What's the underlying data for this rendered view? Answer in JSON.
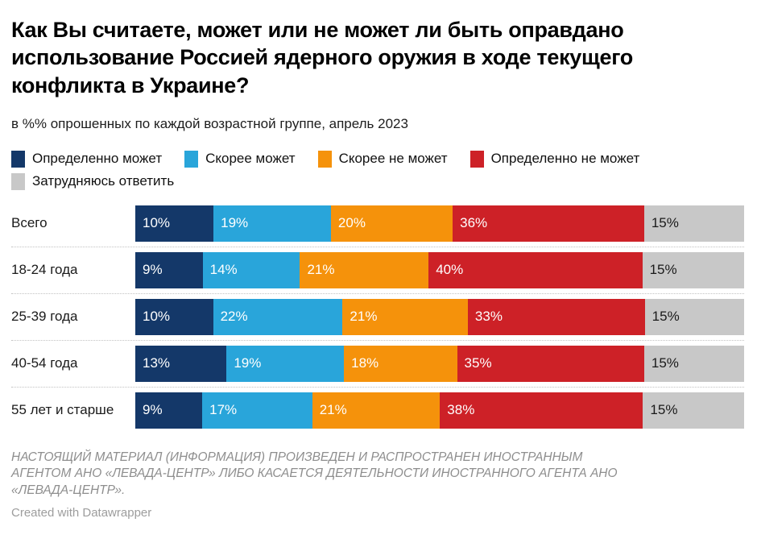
{
  "header": {
    "title": "Как Вы считаете, может или не может ли быть оправдано использование Россией ядерного оружия в ходе текущего конфликта в Украине?",
    "subtitle": "в %% опрошенных по каждой возрастной группе, апрель 2023"
  },
  "legend": {
    "items": [
      {
        "label": "Определенно может",
        "color": "#143869",
        "text_color": "#ffffff"
      },
      {
        "label": "Скорее может",
        "color": "#29a5da",
        "text_color": "#ffffff"
      },
      {
        "label": "Скорее не может",
        "color": "#f5920b",
        "text_color": "#ffffff"
      },
      {
        "label": "Определенно не может",
        "color": "#cd2127",
        "text_color": "#ffffff"
      },
      {
        "label": "Затрудняюсь ответить",
        "color": "#c8c8c8",
        "text_color": "#1a1a1a"
      }
    ]
  },
  "chart_data": {
    "type": "bar",
    "orientation": "horizontal",
    "stacked": true,
    "unit": "%",
    "title": "Как Вы считаете, может или не может ли быть оправдано использование Россией ядерного оружия в ходе текущего конфликта в Украине?",
    "subtitle": "в %% опрошенных по каждой возрастной группе, апрель 2023",
    "categories": [
      "Всего",
      "18-24 года",
      "25-39 года",
      "40-54 года",
      "55 лет и старше"
    ],
    "series": [
      {
        "name": "Определенно может",
        "values": [
          10,
          9,
          10,
          13,
          9
        ]
      },
      {
        "name": "Скорее может",
        "values": [
          19,
          14,
          22,
          19,
          17
        ]
      },
      {
        "name": "Скорее не может",
        "values": [
          20,
          21,
          21,
          18,
          21
        ]
      },
      {
        "name": "Определенно не может",
        "values": [
          36,
          40,
          33,
          35,
          38
        ]
      },
      {
        "name": "Затрудняюсь ответить",
        "values": [
          15,
          15,
          15,
          15,
          15
        ]
      }
    ],
    "xlim": [
      0,
      100
    ],
    "value_labels": "inside",
    "legend_position": "top",
    "grid": false
  },
  "footer": {
    "disclaimer": "НАСТОЯЩИЙ МАТЕРИАЛ (ИНФОРМАЦИЯ) ПРОИЗВЕДЕН И РАСПРОСТРАНЕН ИНОСТРАННЫМ АГЕНТОМ АНО «ЛЕВАДА-ЦЕНТР» ЛИБО КАСАЕТСЯ ДЕЯТЕЛЬНОСТИ ИНОСТРАННОГО АГЕНТА АНО «ЛЕВАДА-ЦЕНТР».",
    "attribution": "Created with Datawrapper"
  }
}
